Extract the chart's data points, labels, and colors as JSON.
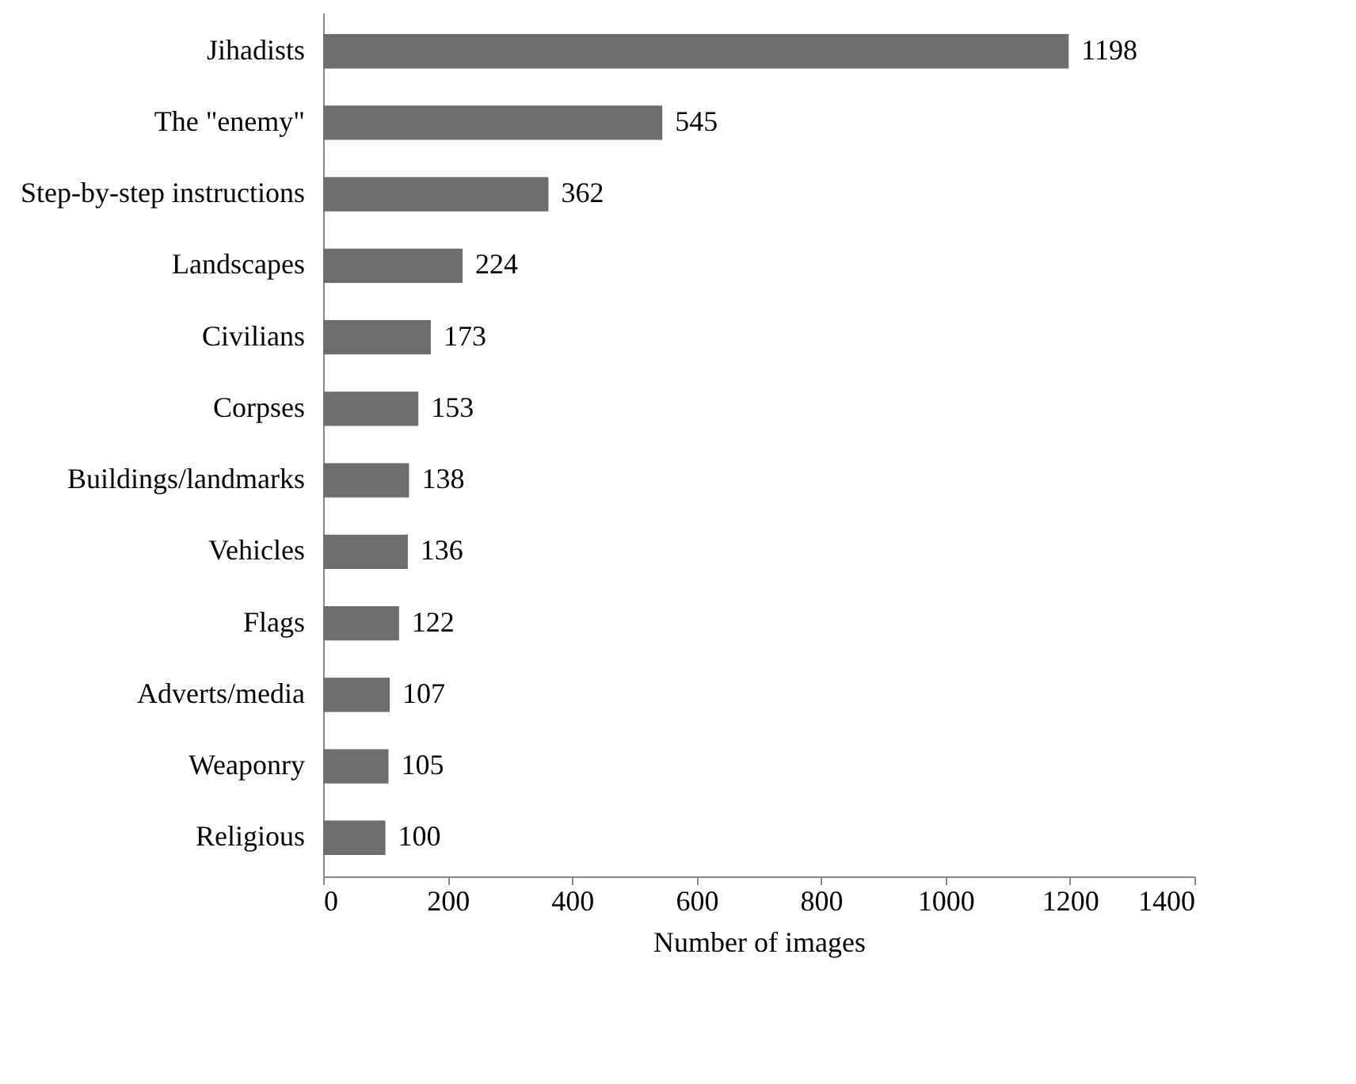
{
  "chart_data": {
    "type": "bar",
    "orientation": "horizontal",
    "xlabel": "Number of images",
    "categories": [
      "Jihadists",
      "The \"enemy\"",
      "Step-by-step instructions",
      "Landscapes",
      "Civilians",
      "Corpses",
      "Buildings/landmarks",
      "Vehicles",
      "Flags",
      "Adverts/media",
      "Weaponry",
      "Religious"
    ],
    "values": [
      1198,
      545,
      362,
      224,
      173,
      153,
      138,
      136,
      122,
      107,
      105,
      100
    ],
    "color": "#6d6d6d",
    "xlim": [
      0,
      1400
    ],
    "xticks": [
      0,
      200,
      400,
      600,
      800,
      1000,
      1200,
      1400
    ],
    "data_labels": true
  }
}
